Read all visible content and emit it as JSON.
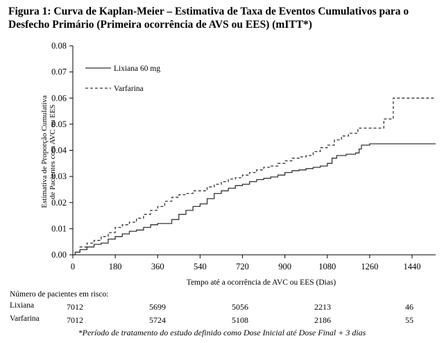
{
  "title_line1": "Figura 1: Curva de Kaplan-Meier – Estimativa de Taxa de Eventos Cumulativos para o",
  "title_line2": "Desfecho Primário (Primeira ocorrência de AVS ou EES) (mITT*)",
  "chart_data": {
    "type": "line",
    "title": "Figura 1: Curva de Kaplan-Meier – Estimativa de Taxa de Eventos Cumulativos para o Desfecho Primário (Primeira ocorrência de AVS ou EES) (mITT*)",
    "xlabel": "Tempo até a ocorrência de AVC ou EES (Dias)",
    "ylabel_line1": "Estimativa de Proporção Cumulativa",
    "ylabel_line2": "de Pacientes com AVC ou EES",
    "xlim": [
      0,
      1540
    ],
    "ylim": [
      0,
      0.08
    ],
    "xticks": [
      "0",
      "180",
      "360",
      "540",
      "720",
      "900",
      "1080",
      "1260",
      "1440"
    ],
    "yticks": [
      "0.00",
      "0.01",
      "0.02",
      "0.03",
      "0.04",
      "0.05",
      "0.06",
      "0.07",
      "0.08"
    ],
    "legend_position": "top-left",
    "series": [
      {
        "name": "Lixiana 60 mg",
        "style": "solid",
        "points": [
          [
            0,
            0
          ],
          [
            10,
            0.001
          ],
          [
            30,
            0.002
          ],
          [
            60,
            0.003
          ],
          [
            90,
            0.004
          ],
          [
            120,
            0.0045
          ],
          [
            150,
            0.006
          ],
          [
            180,
            0.007
          ],
          [
            210,
            0.008
          ],
          [
            240,
            0.009
          ],
          [
            270,
            0.0095
          ],
          [
            300,
            0.0105
          ],
          [
            330,
            0.0115
          ],
          [
            360,
            0.012
          ],
          [
            390,
            0.012
          ],
          [
            420,
            0.0135
          ],
          [
            450,
            0.0155
          ],
          [
            480,
            0.017
          ],
          [
            510,
            0.0185
          ],
          [
            540,
            0.0195
          ],
          [
            570,
            0.0215
          ],
          [
            600,
            0.0235
          ],
          [
            630,
            0.0245
          ],
          [
            660,
            0.0255
          ],
          [
            690,
            0.0265
          ],
          [
            720,
            0.027
          ],
          [
            750,
            0.028
          ],
          [
            780,
            0.0288
          ],
          [
            810,
            0.0293
          ],
          [
            840,
            0.0298
          ],
          [
            870,
            0.0305
          ],
          [
            900,
            0.0315
          ],
          [
            930,
            0.0322
          ],
          [
            960,
            0.0325
          ],
          [
            990,
            0.033
          ],
          [
            1020,
            0.0335
          ],
          [
            1050,
            0.034
          ],
          [
            1080,
            0.035
          ],
          [
            1100,
            0.037
          ],
          [
            1120,
            0.038
          ],
          [
            1140,
            0.038
          ],
          [
            1160,
            0.0385
          ],
          [
            1200,
            0.039
          ],
          [
            1215,
            0.0405
          ],
          [
            1225,
            0.042
          ],
          [
            1260,
            0.0425
          ],
          [
            1540,
            0.0425
          ]
        ]
      },
      {
        "name": "Varfarina",
        "style": "dashed",
        "points": [
          [
            0,
            0
          ],
          [
            10,
            0.001
          ],
          [
            30,
            0.003
          ],
          [
            60,
            0.0045
          ],
          [
            90,
            0.0055
          ],
          [
            120,
            0.007
          ],
          [
            150,
            0.0085
          ],
          [
            180,
            0.0105
          ],
          [
            210,
            0.0115
          ],
          [
            240,
            0.0125
          ],
          [
            270,
            0.014
          ],
          [
            300,
            0.0155
          ],
          [
            330,
            0.017
          ],
          [
            360,
            0.0185
          ],
          [
            390,
            0.0205
          ],
          [
            420,
            0.022
          ],
          [
            450,
            0.023
          ],
          [
            480,
            0.0235
          ],
          [
            510,
            0.0245
          ],
          [
            540,
            0.0245
          ],
          [
            570,
            0.026
          ],
          [
            600,
            0.027
          ],
          [
            630,
            0.028
          ],
          [
            660,
            0.029
          ],
          [
            690,
            0.0295
          ],
          [
            720,
            0.0305
          ],
          [
            750,
            0.0315
          ],
          [
            780,
            0.0325
          ],
          [
            810,
            0.0335
          ],
          [
            840,
            0.034
          ],
          [
            870,
            0.035
          ],
          [
            900,
            0.036
          ],
          [
            930,
            0.037
          ],
          [
            960,
            0.0375
          ],
          [
            990,
            0.038
          ],
          [
            1020,
            0.0395
          ],
          [
            1050,
            0.041
          ],
          [
            1080,
            0.042
          ],
          [
            1110,
            0.044
          ],
          [
            1140,
            0.0455
          ],
          [
            1170,
            0.0465
          ],
          [
            1200,
            0.0465
          ],
          [
            1210,
            0.0485
          ],
          [
            1240,
            0.0485
          ],
          [
            1310,
            0.0485
          ],
          [
            1320,
            0.052
          ],
          [
            1350,
            0.052
          ],
          [
            1360,
            0.06
          ],
          [
            1540,
            0.06
          ]
        ]
      }
    ]
  },
  "risk_table": {
    "header": "Número de pacientes em risco:",
    "rows": [
      {
        "label": "Lixiana",
        "values": [
          "7012",
          "5699",
          "5056",
          "2213",
          "46"
        ]
      },
      {
        "label": "Varfarina",
        "values": [
          "7012",
          "5724",
          "5108",
          "2186",
          "55"
        ]
      }
    ]
  },
  "footnote": "*Período de tratamento do estudo definido como Dose Inicial até Dose Final + 3 dias"
}
